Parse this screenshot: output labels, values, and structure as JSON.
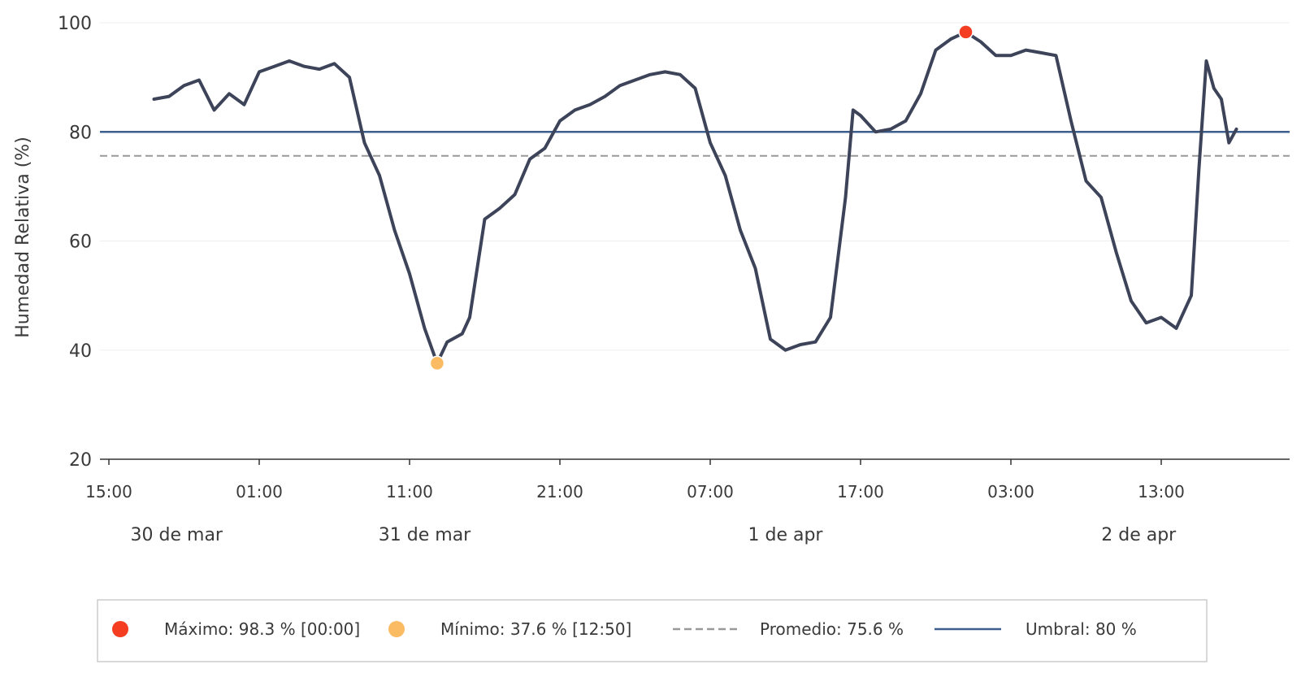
{
  "chart_data": {
    "type": "line",
    "title": "",
    "xlabel": "",
    "ylabel": "Humedad Relativa (%)",
    "ylim": [
      20,
      100
    ],
    "y_ticks": [
      "20",
      "40",
      "60",
      "80",
      "100"
    ],
    "grid": "horizontal",
    "x_ticks": [
      "15:00",
      "01:00",
      "11:00",
      "21:00",
      "07:00",
      "17:00",
      "03:00",
      "13:00"
    ],
    "date_labels": [
      "30 de mar",
      "31 de mar",
      "1 de apr",
      "2 de apr"
    ],
    "legend_position": "bottom",
    "series": [
      {
        "color": "#3d4459",
        "points": [
          [
            "30 mar 18:00",
            86.0
          ],
          [
            "30 mar 19:00",
            86.5
          ],
          [
            "30 mar 20:00",
            88.5
          ],
          [
            "30 mar 21:00",
            89.5
          ],
          [
            "30 mar 22:00",
            84.0
          ],
          [
            "30 mar 23:00",
            87.0
          ],
          [
            "31 mar 00:00",
            85.0
          ],
          [
            "31 mar 01:00",
            91.0
          ],
          [
            "31 mar 02:00",
            92.0
          ],
          [
            "31 mar 03:00",
            93.0
          ],
          [
            "31 mar 04:00",
            92.0
          ],
          [
            "31 mar 05:00",
            91.5
          ],
          [
            "31 mar 06:00",
            92.5
          ],
          [
            "31 mar 07:00",
            90.0
          ],
          [
            "31 mar 08:00",
            78.0
          ],
          [
            "31 mar 09:00",
            72.0
          ],
          [
            "31 mar 10:00",
            62.0
          ],
          [
            "31 mar 11:00",
            54.0
          ],
          [
            "31 mar 12:00",
            44.0
          ],
          [
            "31 mar 12:50",
            37.6
          ],
          [
            "31 mar 13:30",
            41.5
          ],
          [
            "31 mar 14:30",
            43.0
          ],
          [
            "31 mar 15:00",
            46.0
          ],
          [
            "31 mar 16:00",
            64.0
          ],
          [
            "31 mar 17:00",
            66.0
          ],
          [
            "31 mar 18:00",
            68.5
          ],
          [
            "31 mar 19:00",
            75.0
          ],
          [
            "31 mar 20:00",
            77.0
          ],
          [
            "31 mar 21:00",
            82.0
          ],
          [
            "31 mar 22:00",
            84.0
          ],
          [
            "31 mar 23:00",
            85.0
          ],
          [
            "1 apr 00:00",
            86.5
          ],
          [
            "1 apr 01:00",
            88.5
          ],
          [
            "1 apr 02:00",
            89.5
          ],
          [
            "1 apr 03:00",
            90.5
          ],
          [
            "1 apr 04:00",
            91.0
          ],
          [
            "1 apr 05:00",
            90.5
          ],
          [
            "1 apr 06:00",
            88.0
          ],
          [
            "1 apr 07:00",
            78.0
          ],
          [
            "1 apr 08:00",
            72.0
          ],
          [
            "1 apr 09:00",
            62.0
          ],
          [
            "1 apr 10:00",
            55.0
          ],
          [
            "1 apr 11:00",
            42.0
          ],
          [
            "1 apr 12:00",
            40.0
          ],
          [
            "1 apr 13:00",
            41.0
          ],
          [
            "1 apr 14:00",
            41.5
          ],
          [
            "1 apr 15:00",
            46.0
          ],
          [
            "1 apr 16:00",
            68.0
          ],
          [
            "1 apr 16:30",
            84.0
          ],
          [
            "1 apr 17:00",
            83.0
          ],
          [
            "1 apr 18:00",
            80.0
          ],
          [
            "1 apr 19:00",
            80.5
          ],
          [
            "1 apr 20:00",
            82.0
          ],
          [
            "1 apr 21:00",
            87.0
          ],
          [
            "1 apr 22:00",
            95.0
          ],
          [
            "1 apr 23:00",
            97.0
          ],
          [
            "2 apr 00:00",
            98.3
          ],
          [
            "2 apr 01:00",
            96.5
          ],
          [
            "2 apr 02:00",
            94.0
          ],
          [
            "2 apr 03:00",
            94.0
          ],
          [
            "2 apr 04:00",
            95.0
          ],
          [
            "2 apr 05:00",
            94.5
          ],
          [
            "2 apr 06:00",
            94.0
          ],
          [
            "2 apr 07:00",
            82.0
          ],
          [
            "2 apr 08:00",
            71.0
          ],
          [
            "2 apr 09:00",
            68.0
          ],
          [
            "2 apr 10:00",
            58.0
          ],
          [
            "2 apr 11:00",
            49.0
          ],
          [
            "2 apr 12:00",
            45.0
          ],
          [
            "2 apr 13:00",
            46.0
          ],
          [
            "2 apr 14:00",
            44.0
          ],
          [
            "2 apr 15:00",
            50.0
          ],
          [
            "2 apr 15:30",
            73.0
          ],
          [
            "2 apr 16:00",
            93.0
          ],
          [
            "2 apr 16:30",
            88.0
          ],
          [
            "2 apr 17:00",
            86.0
          ],
          [
            "2 apr 17:30",
            78.0
          ],
          [
            "2 apr 18:00",
            80.5
          ]
        ]
      }
    ],
    "markers": {
      "max": {
        "x": "2 apr 00:00",
        "y": 98.3,
        "color": "#f53d22"
      },
      "min": {
        "x": "31 mar 12:50",
        "y": 37.6,
        "color": "#fbbb63"
      }
    },
    "reference_lines": {
      "average": {
        "y": 75.6,
        "color": "#999999",
        "style": "dashed"
      },
      "threshold": {
        "y": 80,
        "color": "#3d5f8f",
        "style": "solid"
      }
    }
  },
  "legend": {
    "items": [
      {
        "label": "Máximo: 98.3 %   [00:00]",
        "symbol": "dot",
        "color": "#f53d22"
      },
      {
        "label": "Mínimo: 37.6 %   [12:50]",
        "symbol": "dot",
        "color": "#fbbb63"
      },
      {
        "label": "Promedio: 75.6 %",
        "symbol": "dashed-line",
        "color": "#999999"
      },
      {
        "label": "Umbral: 80 %",
        "symbol": "solid-line",
        "color": "#3d5f8f"
      }
    ]
  }
}
